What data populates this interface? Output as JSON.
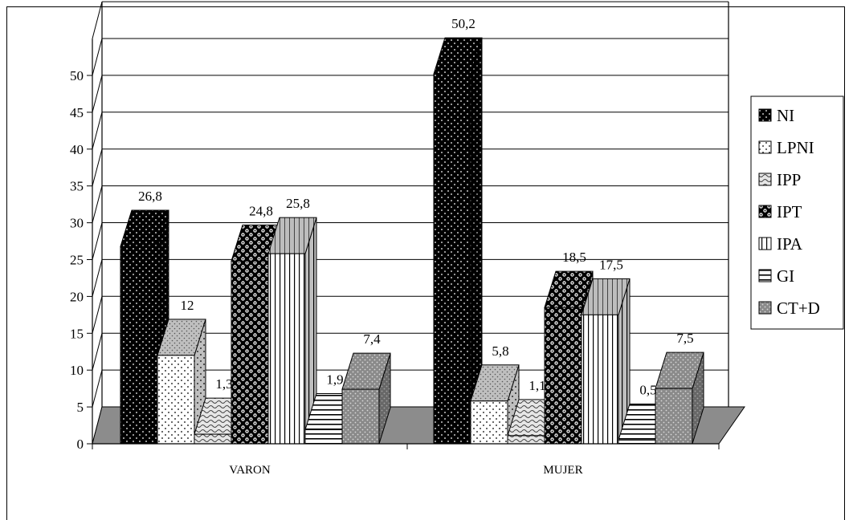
{
  "chart_data": {
    "type": "bar",
    "title": "",
    "xlabel": "",
    "ylabel": "",
    "categories": [
      "VARON",
      "MUJER"
    ],
    "ylim": [
      0,
      50
    ],
    "yticks": [
      "0",
      "5",
      "10",
      "15",
      "20",
      "25",
      "30",
      "35",
      "40",
      "45",
      "50"
    ],
    "grid": true,
    "legend_position": "right",
    "series": [
      {
        "name": "NI",
        "values": [
          26.8,
          50.2
        ],
        "labels": [
          "26,8",
          "50,2"
        ],
        "pattern": "dots-on-black"
      },
      {
        "name": "LPNI",
        "values": [
          12,
          5.8
        ],
        "labels": [
          "12",
          "5,8"
        ],
        "pattern": "dots-on-white"
      },
      {
        "name": "IPP",
        "values": [
          1.3,
          1.1
        ],
        "labels": [
          "1,3",
          "1,1"
        ],
        "pattern": "waves"
      },
      {
        "name": "IPT",
        "values": [
          24.8,
          18.5
        ],
        "labels": [
          "24,8",
          "18,5"
        ],
        "pattern": "checker"
      },
      {
        "name": "IPA",
        "values": [
          25.8,
          17.5
        ],
        "labels": [
          "25,8",
          "17,5"
        ],
        "pattern": "vertical-lines"
      },
      {
        "name": "GI",
        "values": [
          1.9,
          0.5
        ],
        "labels": [
          "1,9",
          "0,5"
        ],
        "pattern": "horizontal-lines"
      },
      {
        "name": "CT+D",
        "values": [
          7.4,
          7.5
        ],
        "labels": [
          "7,4",
          "7,5"
        ],
        "pattern": "grey-dots"
      }
    ]
  }
}
